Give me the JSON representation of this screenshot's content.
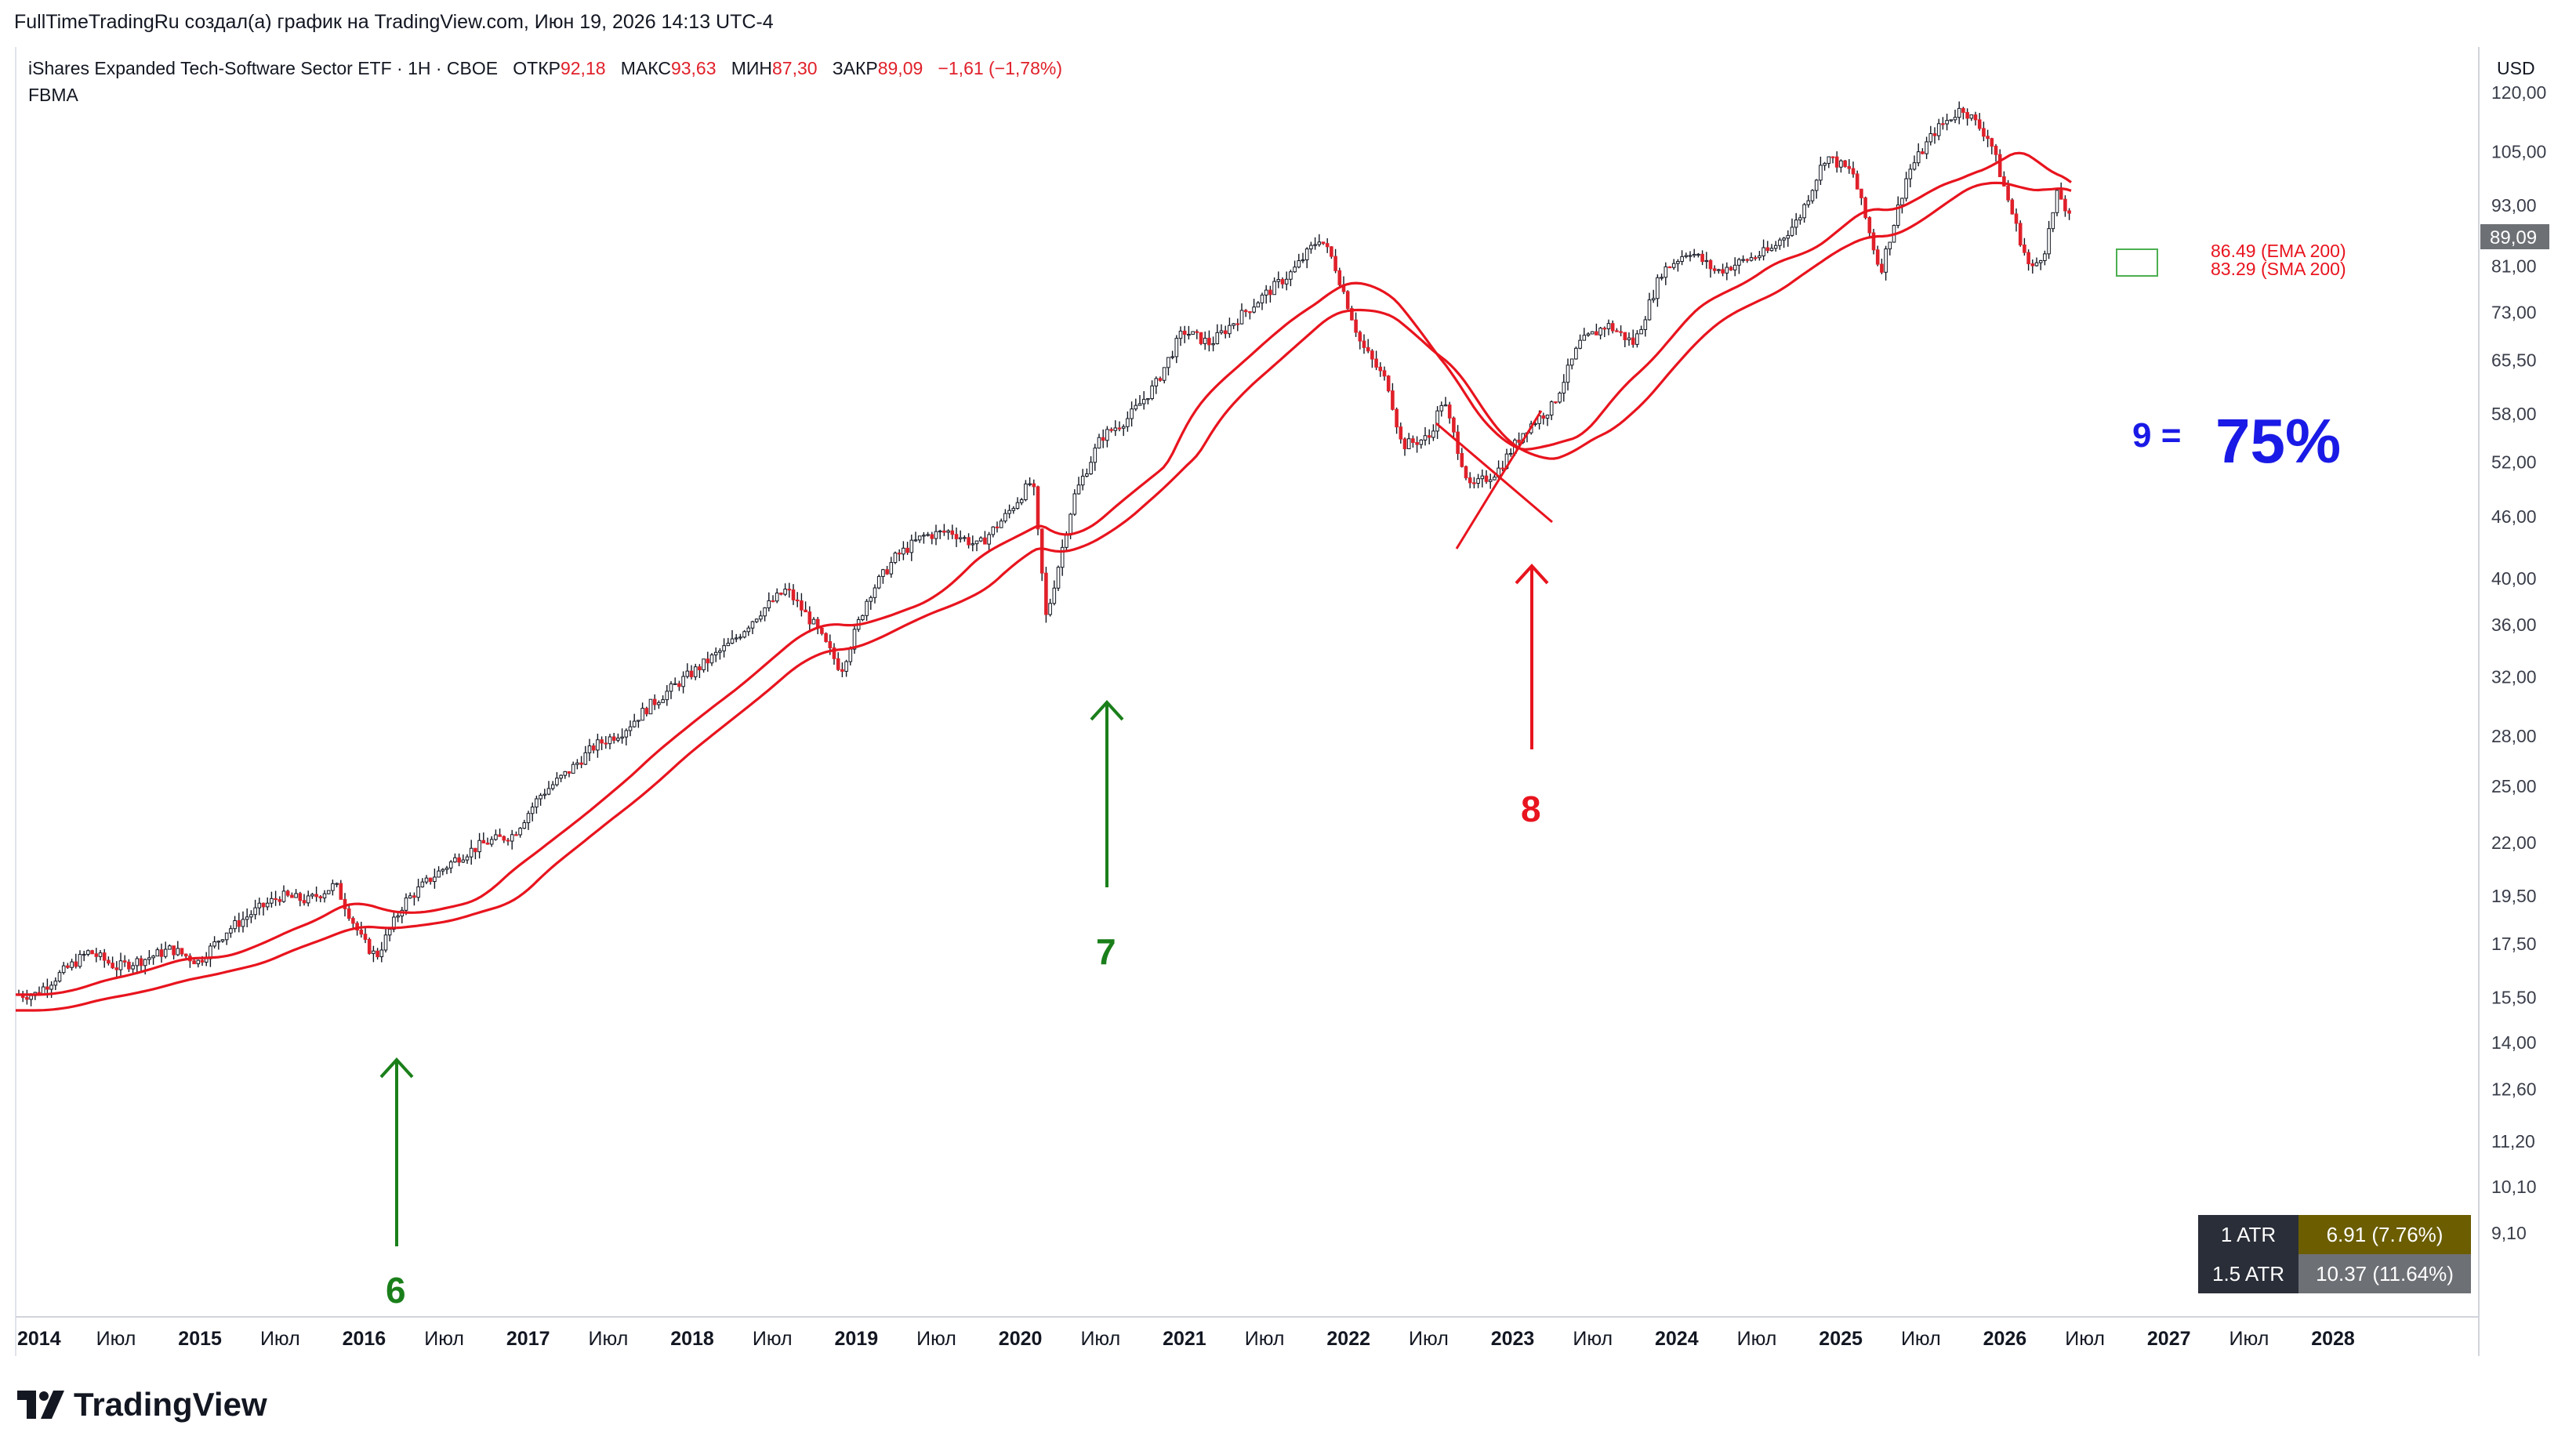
{
  "header": {
    "title": "FullTimeTradingRu создал(а) график на TradingView.com, Июн 19, 2026 14:13 UTC-4"
  },
  "legend": {
    "symbol": "iShares Expanded Tech-Software Sector ETF · 1Н · CBOE",
    "open_label": "ОТКР",
    "open": "92,18",
    "high_label": "МАКС",
    "high": "93,63",
    "low_label": "МИН",
    "low": "87,30",
    "close_label": "ЗАКР",
    "close": "89,09",
    "change": "−1,61 (−1,78%)",
    "indicator": "FBMA"
  },
  "currency": "USD",
  "price_tag": "89,09",
  "ma_labels": {
    "ema": "86.49 (EMA 200)",
    "sma": "83.29 (SMA 200)"
  },
  "annotations": {
    "n6": "6",
    "n7": "7",
    "n8": "8",
    "n9": "9 =",
    "pct": "75%"
  },
  "atr": {
    "row1_label": "1 ATR",
    "row1_value": "6.91 (7.76%)",
    "row2_label": "1.5 ATR",
    "row2_value": "10.37 (11.64%)"
  },
  "branding": {
    "logo_text": "TradingView"
  },
  "colors": {
    "up": "#26a69a",
    "candle": "#131722",
    "down": "#e0202a",
    "ma": "#e8141e",
    "green_arrow": "#1a7f1a",
    "blue_text": "#1a1ae6",
    "red_text": "#e8141e"
  },
  "chart_data": {
    "type": "candlestick",
    "scale": "log",
    "y_ticks": [
      "120,00",
      "105,00",
      "93,00",
      "81,00",
      "73,00",
      "65,50",
      "58,00",
      "52,00",
      "46,00",
      "40,00",
      "36,00",
      "32,00",
      "28,00",
      "25,00",
      "22,00",
      "19,50",
      "17,50",
      "15,50",
      "14,00",
      "12,60",
      "11,20",
      "10,10",
      "9,10"
    ],
    "x_ticks": [
      "2014",
      "Июл",
      "2015",
      "Июл",
      "2016",
      "Июл",
      "2017",
      "Июл",
      "2018",
      "Июл",
      "2019",
      "Июл",
      "2020",
      "Июл",
      "2021",
      "Июл",
      "2022",
      "Июл",
      "2023",
      "Июл",
      "2024",
      "Июл",
      "2025",
      "Июл",
      "2026",
      "Июл",
      "2027",
      "Июл",
      "2028"
    ],
    "price_path": [
      [
        "2014-01",
        15.6
      ],
      [
        "2014-03",
        16.4
      ],
      [
        "2014-05",
        17.2
      ],
      [
        "2014-07",
        16.6
      ],
      [
        "2014-09",
        16.9
      ],
      [
        "2014-11",
        17.3
      ],
      [
        "2015-01",
        16.8
      ],
      [
        "2015-03",
        18.0
      ],
      [
        "2015-05",
        18.8
      ],
      [
        "2015-07",
        19.5
      ],
      [
        "2015-09",
        19.3
      ],
      [
        "2015-11",
        20.0
      ],
      [
        "2016-01",
        17.6
      ],
      [
        "2016-02",
        17.0
      ],
      [
        "2016-04",
        19.2
      ],
      [
        "2016-06",
        20.3
      ],
      [
        "2016-08",
        21.3
      ],
      [
        "2016-10",
        22.0
      ],
      [
        "2016-12",
        22.4
      ],
      [
        "2017-02",
        24.5
      ],
      [
        "2017-04",
        25.8
      ],
      [
        "2017-06",
        27.4
      ],
      [
        "2017-08",
        28.3
      ],
      [
        "2017-10",
        30.0
      ],
      [
        "2017-12",
        31.5
      ],
      [
        "2018-02",
        33.0
      ],
      [
        "2018-04",
        34.6
      ],
      [
        "2018-06",
        37.0
      ],
      [
        "2018-08",
        39.0
      ],
      [
        "2018-10",
        36.0
      ],
      [
        "2018-12",
        32.5
      ],
      [
        "2019-02",
        38.5
      ],
      [
        "2019-04",
        42.0
      ],
      [
        "2019-06",
        44.0
      ],
      [
        "2019-08",
        44.5
      ],
      [
        "2019-10",
        43.0
      ],
      [
        "2019-12",
        46.0
      ],
      [
        "2020-02",
        50.0
      ],
      [
        "2020-03",
        36.5
      ],
      [
        "2020-05",
        48.0
      ],
      [
        "2020-07",
        55.0
      ],
      [
        "2020-09",
        57.5
      ],
      [
        "2020-11",
        62.0
      ],
      [
        "2021-01",
        70.0
      ],
      [
        "2021-03",
        68.0
      ],
      [
        "2021-05",
        72.0
      ],
      [
        "2021-07",
        76.0
      ],
      [
        "2021-09",
        80.0
      ],
      [
        "2021-11",
        86.5
      ],
      [
        "2021-12",
        82.0
      ],
      [
        "2022-02",
        68.0
      ],
      [
        "2022-04",
        62.0
      ],
      [
        "2022-05",
        54.0
      ],
      [
        "2022-07",
        55.0
      ],
      [
        "2022-08",
        60.0
      ],
      [
        "2022-10",
        49.0
      ],
      [
        "2022-12",
        51.0
      ],
      [
        "2023-02",
        56.0
      ],
      [
        "2023-04",
        59.0
      ],
      [
        "2023-06",
        68.0
      ],
      [
        "2023-08",
        71.0
      ],
      [
        "2023-10",
        68.0
      ],
      [
        "2023-12",
        80.0
      ],
      [
        "2024-02",
        84.0
      ],
      [
        "2024-04",
        80.0
      ],
      [
        "2024-06",
        82.0
      ],
      [
        "2024-08",
        84.0
      ],
      [
        "2024-10",
        90.0
      ],
      [
        "2024-12",
        104.0
      ],
      [
        "2025-02",
        100.0
      ],
      [
        "2025-04",
        80.0
      ],
      [
        "2025-06",
        100.0
      ],
      [
        "2025-08",
        110.0
      ],
      [
        "2025-10",
        116.0
      ],
      [
        "2025-12",
        108.0
      ],
      [
        "2026-02",
        88.0
      ],
      [
        "2026-03",
        80.0
      ],
      [
        "2026-04",
        84.0
      ],
      [
        "2026-05",
        96.0
      ],
      [
        "2026-06",
        89.09
      ]
    ],
    "series": [
      {
        "name": "EMA 200",
        "last": 86.49
      },
      {
        "name": "SMA 200",
        "last": 83.29
      }
    ]
  }
}
